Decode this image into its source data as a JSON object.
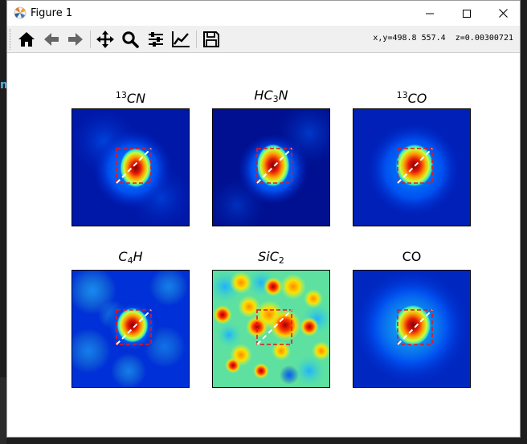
{
  "window": {
    "title": "Figure 1",
    "app_icon": "matplotlib-logo",
    "controls": [
      "minimize-icon",
      "maximize-icon",
      "close-icon"
    ]
  },
  "background": {
    "left_mark": "m"
  },
  "toolbar": {
    "buttons": [
      {
        "name": "home",
        "icon": "home-icon"
      },
      {
        "name": "back",
        "icon": "arrow-left-icon"
      },
      {
        "name": "forward",
        "icon": "arrow-right-icon"
      },
      {
        "name": "pan",
        "icon": "move-icon"
      },
      {
        "name": "zoom",
        "icon": "magnifier-icon"
      },
      {
        "name": "subplots",
        "icon": "sliders-icon"
      },
      {
        "name": "edit-axes",
        "icon": "line-chart-icon"
      },
      {
        "name": "save",
        "icon": "floppy-disk-icon"
      }
    ],
    "coord_readout": "x,y=498.8 557.4  z=0.00300721"
  },
  "panels": [
    {
      "id": "13cn",
      "title_sup": "13",
      "title_main": "CN",
      "title_sub": "",
      "title_tail": ""
    },
    {
      "id": "hc3n",
      "title_sup": "",
      "title_main": "HC",
      "title_sub": "3",
      "title_tail": "N"
    },
    {
      "id": "13co",
      "title_sup": "13",
      "title_main": "CO",
      "title_sub": "",
      "title_tail": ""
    },
    {
      "id": "c4h",
      "title_sup": "",
      "title_main": "C",
      "title_sub": "4",
      "title_tail": "H"
    },
    {
      "id": "sic2",
      "title_sup": "",
      "title_main": "SiC",
      "title_sub": "2",
      "title_tail": ""
    },
    {
      "id": "co",
      "title_sup": "",
      "title_main": "CO",
      "title_sub": "",
      "title_tail": ""
    }
  ],
  "colors": {
    "colormap": "jet",
    "box_color": "#e8141c",
    "diagonal_color": "#ffffff"
  }
}
